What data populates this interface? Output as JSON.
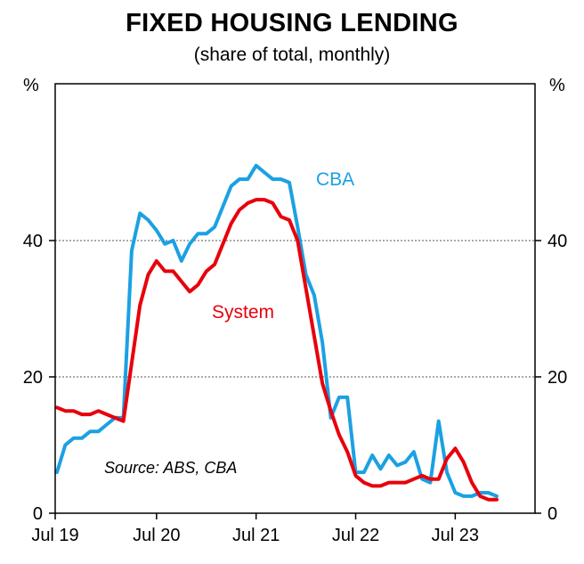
{
  "chart_data": {
    "type": "line",
    "title": "FIXED HOUSING LENDING",
    "subtitle": "(share of total, monthly)",
    "ylabel_left": "%",
    "ylabel_right": "%",
    "ylim": [
      0,
      63
    ],
    "yticks": [
      0,
      20,
      40
    ],
    "grid": "dotted horizontal at 20 and 40",
    "x_tick_labels": [
      "Jul 19",
      "Jul 20",
      "Jul 21",
      "Jul 22",
      "Jul 23"
    ],
    "x_tick_months": [
      0,
      12,
      24,
      36,
      48
    ],
    "xlim_months": [
      0,
      58
    ],
    "source": "Source: ABS, CBA",
    "colors": {
      "CBA": "#1ba1e2",
      "System": "#e8000b"
    },
    "series": [
      {
        "name": "CBA",
        "x_months": [
          0,
          1,
          2,
          3,
          4,
          5,
          6,
          7,
          8,
          9,
          10,
          11,
          12,
          13,
          14,
          15,
          16,
          17,
          18,
          19,
          20,
          21,
          22,
          23,
          24,
          25,
          26,
          27,
          28,
          29,
          30,
          31,
          32,
          33,
          34,
          35,
          36,
          37,
          38,
          39,
          40,
          41,
          42,
          43,
          44,
          45,
          46,
          47,
          48,
          49,
          50,
          51,
          52,
          53,
          54,
          55,
          56
        ],
        "values": [
          6,
          10,
          11,
          11,
          12,
          12,
          13,
          14,
          14,
          38.5,
          44,
          43,
          41.5,
          39.5,
          40,
          37,
          39.5,
          41,
          41,
          42,
          45,
          48,
          49,
          49,
          51,
          50,
          49,
          49,
          48.5,
          42,
          35,
          32,
          25,
          14,
          17,
          17,
          6,
          6,
          8.5,
          6.5,
          8.5,
          7,
          7.5,
          9,
          5,
          4.5,
          13.5,
          6,
          3,
          2.5,
          2.5,
          3,
          3,
          2.5,
          null,
          null,
          null
        ]
      },
      {
        "name": "System",
        "x_months": [
          0,
          1,
          2,
          3,
          4,
          5,
          6,
          7,
          8,
          9,
          10,
          11,
          12,
          13,
          14,
          15,
          16,
          17,
          18,
          19,
          20,
          21,
          22,
          23,
          24,
          25,
          26,
          27,
          28,
          29,
          30,
          31,
          32,
          33,
          34,
          35,
          36,
          37,
          38,
          39,
          40,
          41,
          42,
          43,
          44,
          45,
          46,
          47,
          48,
          49,
          50,
          51,
          52,
          53,
          54,
          55,
          56
        ],
        "values": [
          15.5,
          15,
          15,
          14.5,
          14.5,
          15,
          14.5,
          14,
          13.5,
          22,
          30.5,
          35,
          37,
          35.5,
          35.5,
          34,
          32.5,
          33.5,
          35.5,
          36.5,
          39.5,
          42.5,
          44.5,
          45.5,
          46,
          46,
          45.5,
          43.5,
          43,
          40,
          33,
          26,
          19,
          15,
          11.5,
          9,
          5.5,
          4.5,
          4,
          4,
          4.5,
          4.5,
          4.5,
          5,
          5.5,
          5,
          5,
          8,
          9.5,
          7.5,
          4.5,
          2.5,
          2,
          2,
          null,
          null,
          null
        ]
      }
    ],
    "annotations": [
      {
        "text": "CBA",
        "series": "CBA"
      },
      {
        "text": "System",
        "series": "System"
      }
    ]
  }
}
